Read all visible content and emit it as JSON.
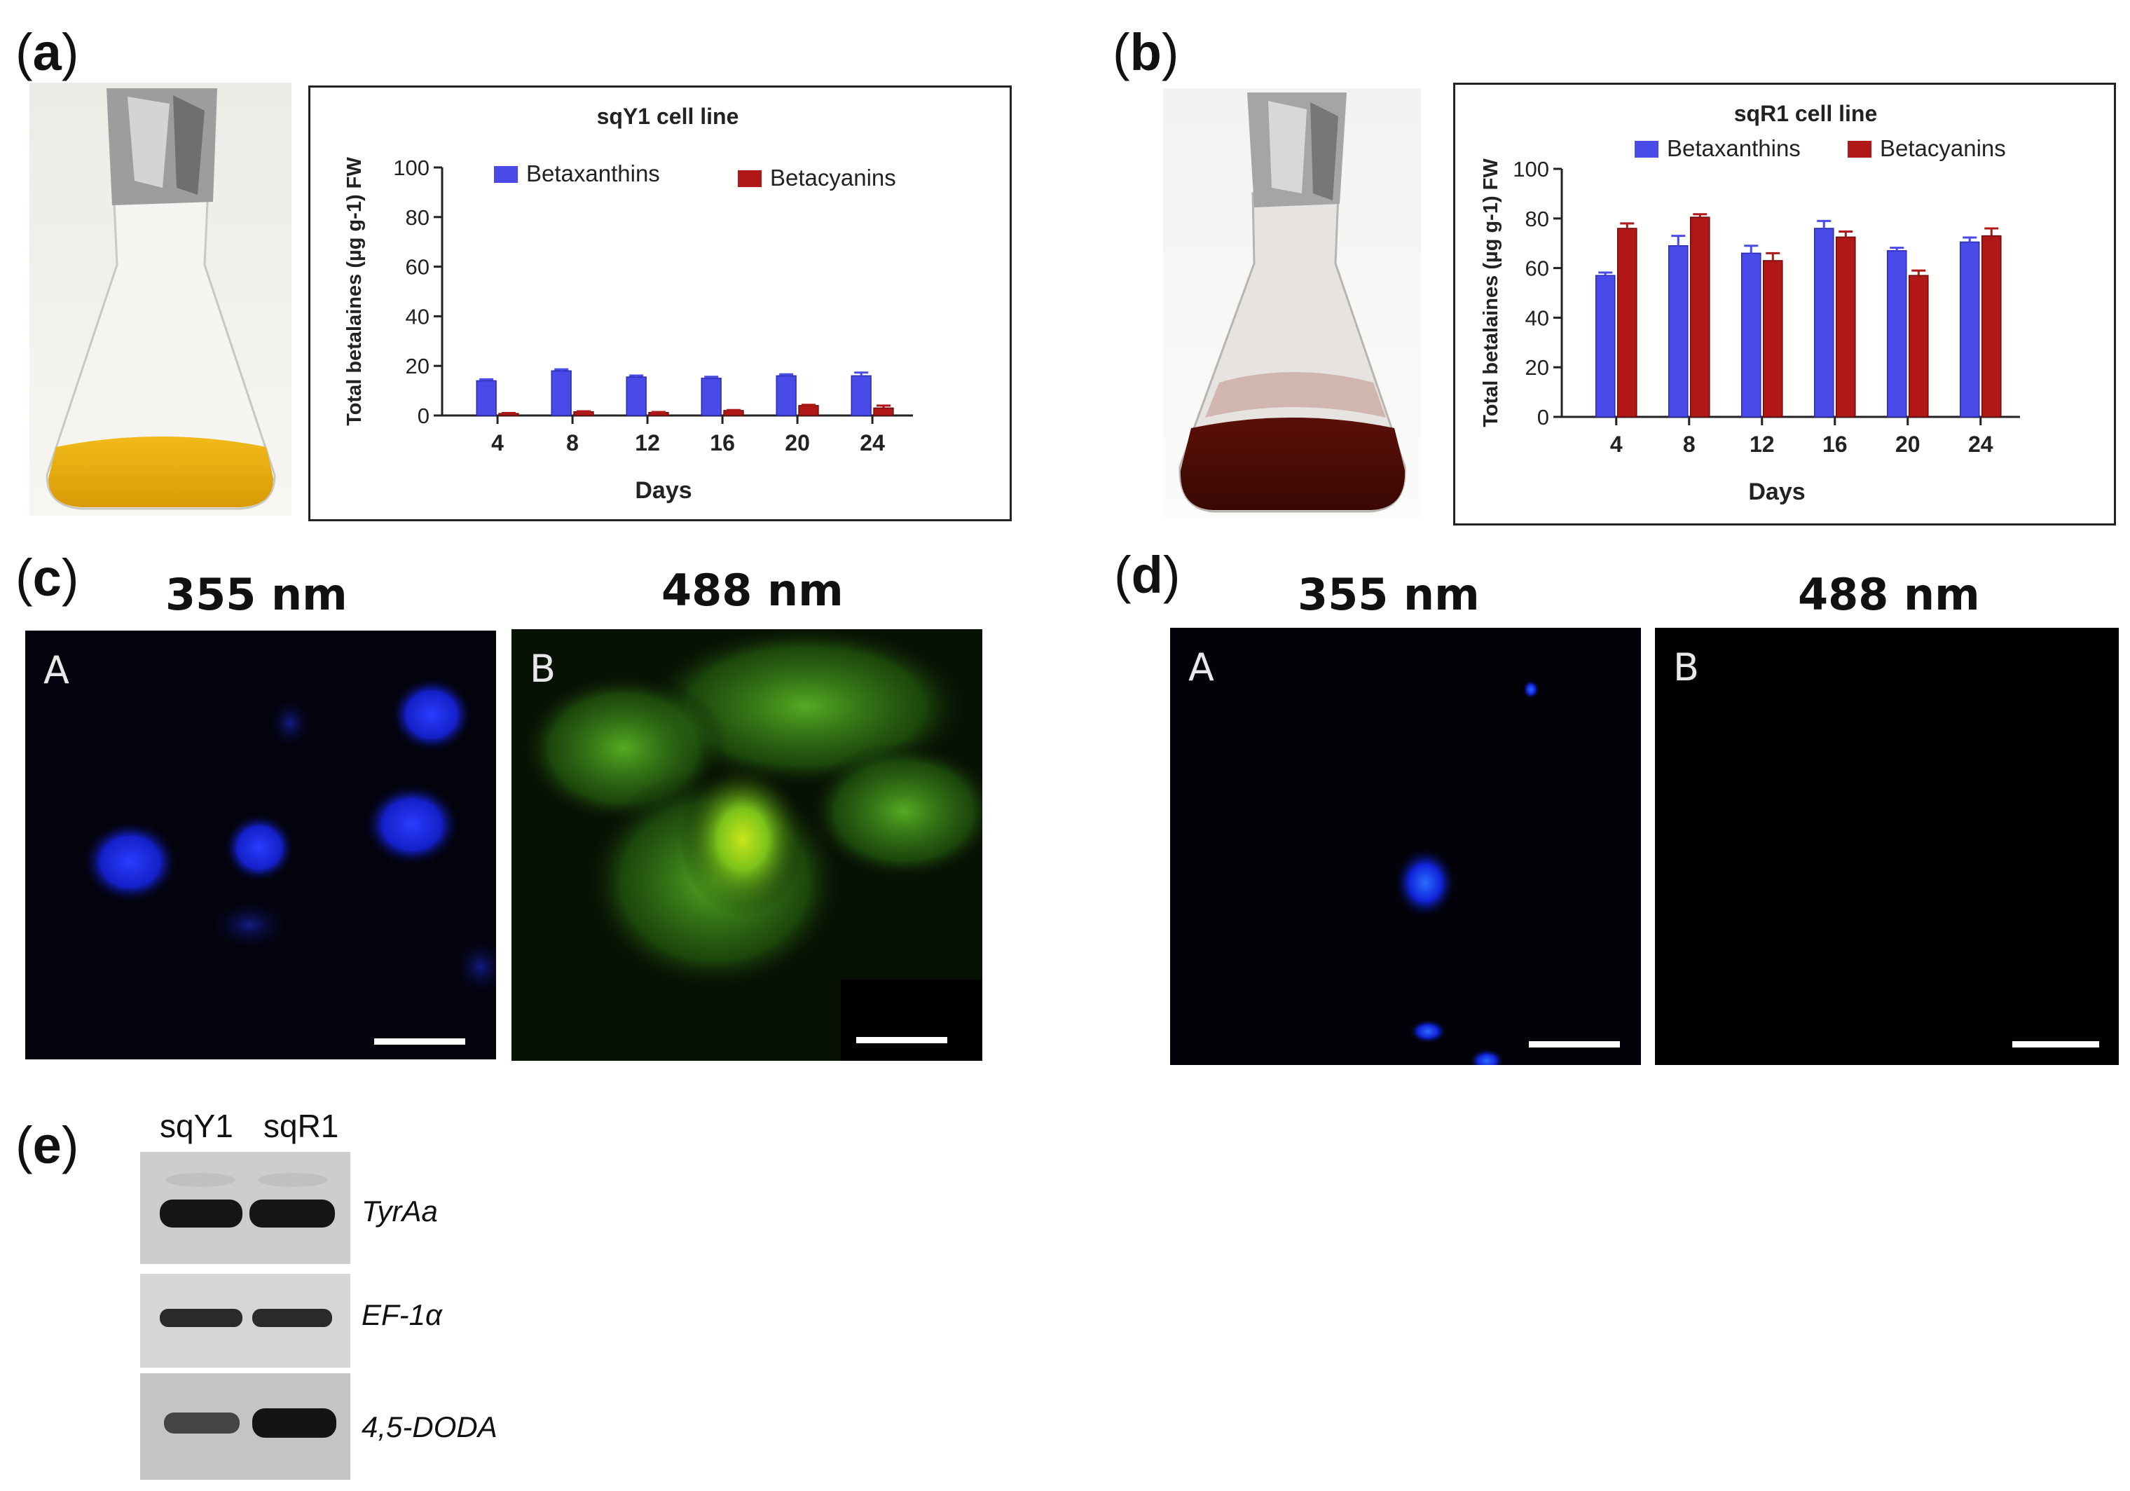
{
  "panels": {
    "a": {
      "label": "a"
    },
    "b": {
      "label": "b"
    },
    "c": {
      "label": "c",
      "wavelength_left": "355 nm",
      "wavelength_right": "488 nm",
      "image_left_label": "A",
      "image_right_label": "B"
    },
    "d": {
      "label": "d",
      "wavelength_left": "355 nm",
      "wavelength_right": "488 nm",
      "image_left_label": "A",
      "image_right_label": "B"
    },
    "e": {
      "label": "e",
      "lanes": [
        "sqY1",
        "sqR1"
      ],
      "genes": [
        "TyrAa",
        "EF-1α",
        "4,5-DODA"
      ]
    }
  },
  "chart_data": [
    {
      "type": "bar",
      "title": "sqY1 cell line",
      "xlabel": "Days",
      "ylabel": "Total betalaines (µg g-1) FW",
      "categories": [
        "4",
        "8",
        "12",
        "16",
        "20",
        "24"
      ],
      "ylim": [
        0,
        100
      ],
      "yticks": [
        "0",
        "20",
        "40",
        "60",
        "80",
        "100"
      ],
      "legend_position": "top-right",
      "series": [
        {
          "name": "Betaxanthins",
          "color": "#4a4ae8",
          "values": [
            14,
            18,
            15.5,
            15,
            16,
            16
          ],
          "errors": [
            0.6,
            0.6,
            0.6,
            0.6,
            0.6,
            1.3
          ]
        },
        {
          "name": "Betacyanins",
          "color": "#b01818",
          "values": [
            0.8,
            1.5,
            1.2,
            2,
            4,
            3
          ],
          "errors": [
            0.2,
            0.2,
            0.2,
            0.2,
            0.3,
            1.0
          ]
        }
      ]
    },
    {
      "type": "bar",
      "title": "sqR1 cell line",
      "xlabel": "Days",
      "ylabel": "Total betalaines (µg g-1) FW",
      "categories": [
        "4",
        "8",
        "12",
        "16",
        "20",
        "24"
      ],
      "ylim": [
        0,
        100
      ],
      "yticks": [
        "0",
        "20",
        "40",
        "60",
        "80",
        "100"
      ],
      "legend_position": "top",
      "series": [
        {
          "name": "Betaxanthins",
          "color": "#4a4ae8",
          "values": [
            57,
            69,
            66,
            76,
            67,
            70.5
          ],
          "errors": [
            1.2,
            4,
            3,
            3,
            1.2,
            1.8
          ]
        },
        {
          "name": "Betacyanins",
          "color": "#b01818",
          "values": [
            76,
            80.5,
            63,
            72.5,
            57,
            73
          ],
          "errors": [
            2,
            1.2,
            3,
            2.2,
            2,
            3
          ]
        }
      ]
    }
  ]
}
